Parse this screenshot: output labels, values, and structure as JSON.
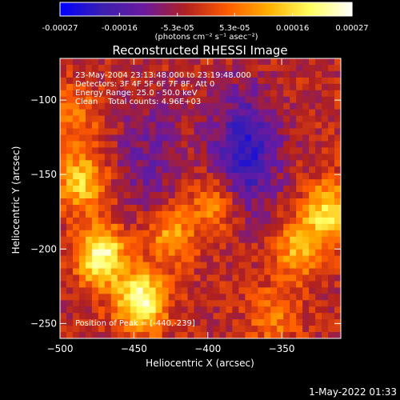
{
  "chart_data": {
    "type": "heatmap",
    "title": "Reconstructed RHESSI Image",
    "xlabel": "Heliocentric X (arcsec)",
    "ylabel": "Heliocentric Y (arcsec)",
    "xlim": [
      -500,
      -310
    ],
    "ylim": [
      -260,
      -72
    ],
    "x_ticks": [
      -500,
      -450,
      -400,
      -350
    ],
    "y_ticks": [
      -100,
      -150,
      -200,
      -250
    ],
    "colorbar": {
      "range": [
        -0.00027,
        0.00027
      ],
      "tick_labels": [
        "-0.00027",
        "-0.00016",
        "-5.3e-05",
        "5.3e-05",
        "0.00016",
        "0.00027"
      ],
      "tick_values": [
        -0.00027,
        -0.00016,
        -5.3e-05,
        5.3e-05,
        0.00016,
        0.00027
      ],
      "unit_label": "(photons cm⁻² s⁻¹ asec⁻²)",
      "colormap": [
        "#0000ff",
        "#3a1fb0",
        "#6a1aa0",
        "#b02020",
        "#ff5a00",
        "#ffb000",
        "#ffff60",
        "#ffffff"
      ]
    },
    "annotations": [
      "23-May-2004 23:13:48.000 to 23:19:48.000",
      "Detectors: 3F 4F 5F 6F 7F 8F, Att 0",
      "Energy Range: 25.0 - 50.0 keV",
      "Clean    Total counts: 4.96E+03"
    ],
    "peak_label": "Position of Peak = [-440,-239]",
    "peak_position": [
      -440,
      -239
    ],
    "hot_regions": [
      {
        "x": -472,
        "y": -205,
        "intensity": 0.00026
      },
      {
        "x": -445,
        "y": -235,
        "intensity": 0.00027
      },
      {
        "x": -485,
        "y": -155,
        "intensity": 0.00018
      },
      {
        "x": -425,
        "y": -190,
        "intensity": 0.00014
      },
      {
        "x": -395,
        "y": -170,
        "intensity": 0.00012
      },
      {
        "x": -338,
        "y": -200,
        "intensity": 0.00015
      },
      {
        "x": -318,
        "y": -175,
        "intensity": 0.0002
      },
      {
        "x": -355,
        "y": -245,
        "intensity": 0.0001
      },
      {
        "x": -490,
        "y": -110,
        "intensity": 0.0001
      }
    ],
    "cold_regions": [
      {
        "x": -375,
        "y": -135,
        "intensity": -0.00018
      },
      {
        "x": -440,
        "y": -140,
        "intensity": -8e-05
      }
    ]
  },
  "footer_timestamp": "1-May-2022 01:33"
}
